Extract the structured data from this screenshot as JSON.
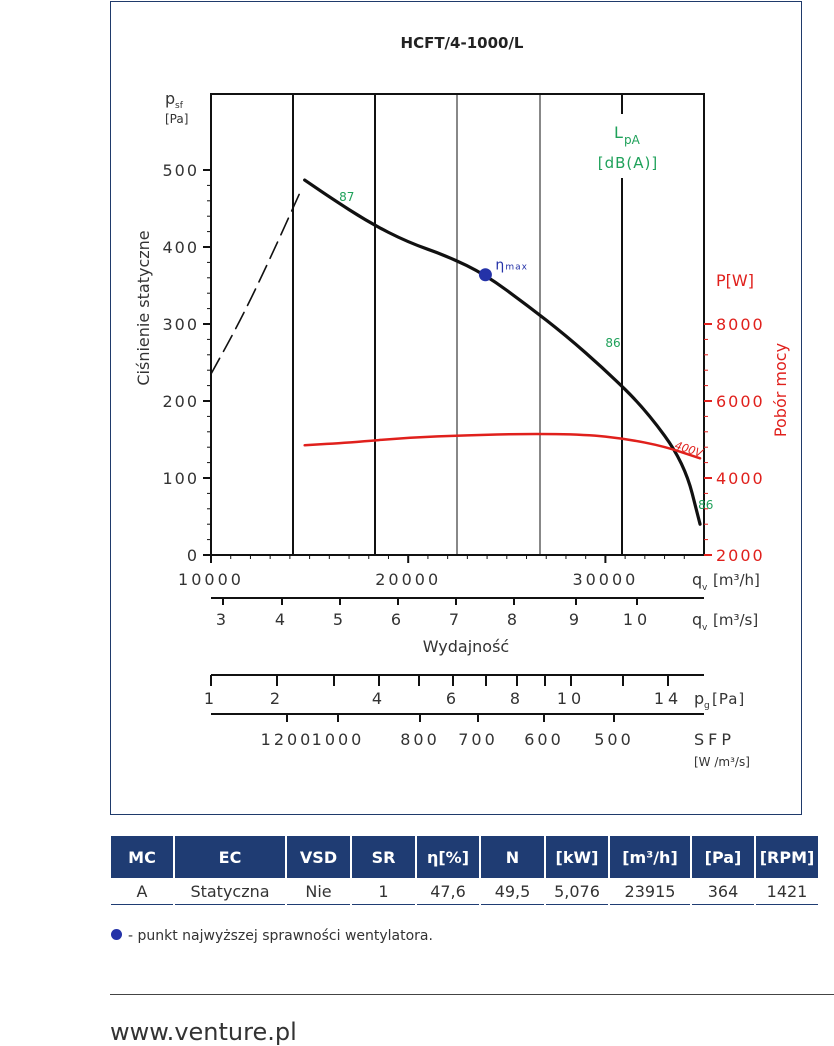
{
  "chart_data": {
    "type": "line",
    "title": "HCFT/4-1000/L",
    "ylabel": "Ciśnienie statyczne",
    "y_unit_symbol": "p",
    "y_unit_sub": "sf",
    "y_unit": "[Pa]",
    "ylim": [
      0,
      500
    ],
    "yticks": [
      0,
      100,
      200,
      300,
      400,
      500
    ],
    "xlim": [
      10000,
      35000
    ],
    "xticks": [
      10000,
      20000,
      30000
    ],
    "x_unit_symbol": "q",
    "x_unit_sub": "v",
    "x_unit": "[m³/h]",
    "x2_unit": "[m³/s]",
    "x2_ticks": [
      3,
      4,
      5,
      6,
      7,
      8,
      9,
      10
    ],
    "xlabel": "Wydajność",
    "y2_label": "Pobór mocy",
    "y2_unit": "P[W]",
    "y2_ticks": [
      2000,
      4000,
      6000,
      8000
    ],
    "y2lim": [
      2000,
      10000
    ],
    "noise_label_l": "L",
    "noise_label_sub": "pA",
    "noise_unit": "[dB(A)]",
    "pg_unit_symbol": "p",
    "pg_unit_sub": "g",
    "pg_unit": "[Pa]",
    "pg_ticks": [
      "1",
      "2",
      "4",
      "6",
      "8",
      "10",
      "14"
    ],
    "sfp_label": "SFP",
    "sfp_unit": "[W /m³/s]",
    "sfp_ticks": [
      "1200",
      "1000",
      "800",
      "700",
      "600",
      "500"
    ],
    "eta_label": "η",
    "eta_sub": "max",
    "series": [
      {
        "name": "",
        "color": "#111111",
        "x": [
          14750,
          16000,
          18000,
          20000,
          22000,
          23915,
          26000,
          28000,
          30000,
          32000,
          34000,
          34800
        ],
        "y": [
          487,
          465,
          432,
          406,
          388,
          364,
          325,
          285,
          240,
          190,
          120,
          40
        ]
      },
      {
        "name": "",
        "color": "#111111",
        "style": "dashed",
        "x": [
          10000,
          11500,
          13000,
          14500
        ],
        "y": [
          235,
          305,
          385,
          470
        ]
      },
      {
        "name": "400V",
        "color": "#e0201c",
        "axis": "y2",
        "x": [
          14750,
          17000,
          20000,
          23000,
          26000,
          29000,
          31000,
          33000,
          34800
        ],
        "y": [
          4850,
          4920,
          5050,
          5110,
          5150,
          5130,
          5020,
          4820,
          4510
        ]
      }
    ],
    "noise_labels": [
      {
        "text": "87",
        "x": 16500,
        "y": 460
      },
      {
        "text": "86",
        "x": 30000,
        "y": 270
      },
      {
        "text": "86",
        "x": 34700,
        "y": 60
      }
    ],
    "eta_point": {
      "x": 23915,
      "y": 364
    }
  },
  "table": {
    "headers": [
      "MC",
      "EC",
      "VSD",
      "SR",
      "η[%]",
      "N",
      "[kW]",
      "[m³/h]",
      "[Pa]",
      "[RPM]"
    ],
    "row": [
      "A",
      "Statyczna",
      "Nie",
      "1",
      "47,6",
      "49,5",
      "5,076",
      "23915",
      "364",
      "1421"
    ]
  },
  "legend_text": "- punkt najwyższej sprawności wentylatora.",
  "footer_url": "www.venture.pl",
  "colors": {
    "brand_navy": "#1f3c73",
    "power_red": "#e0201c",
    "noise_green": "#1fa15a",
    "eta_blue": "#2432a8"
  }
}
